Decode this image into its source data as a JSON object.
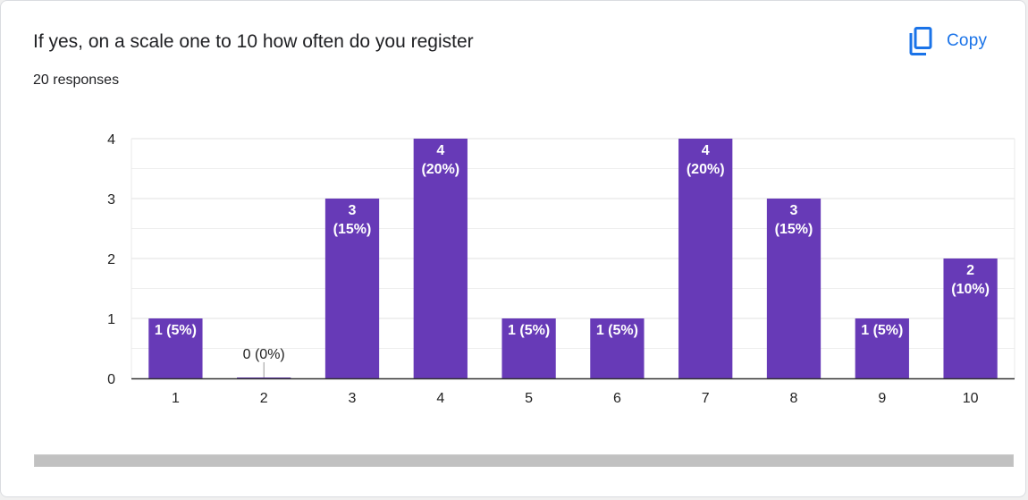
{
  "header": {
    "title": "If yes, on a scale one to 10 how often do you register",
    "responses": "20 responses",
    "copy_label": "Copy"
  },
  "colors": {
    "bar": "#673ab7",
    "accent": "#1a73e8",
    "grid": "#e8e8e8",
    "axis": "#333333"
  },
  "icons": {
    "copy": "copy-icon"
  },
  "chart_data": {
    "type": "bar",
    "categories": [
      "1",
      "2",
      "3",
      "4",
      "5",
      "6",
      "7",
      "8",
      "9",
      "10"
    ],
    "values": [
      1,
      0,
      3,
      4,
      1,
      1,
      4,
      3,
      1,
      2
    ],
    "data_labels": [
      [
        "1 (5%)"
      ],
      [
        "0 (0%)"
      ],
      [
        "3",
        "(15%)"
      ],
      [
        "4",
        "(20%)"
      ],
      [
        "1 (5%)"
      ],
      [
        "1 (5%)"
      ],
      [
        "4",
        "(20%)"
      ],
      [
        "3",
        "(15%)"
      ],
      [
        "1 (5%)"
      ],
      [
        "2",
        "(10%)"
      ]
    ],
    "y_ticks": [
      "0",
      "1",
      "2",
      "3",
      "4"
    ],
    "ylim": [
      0,
      4
    ],
    "grid": true
  }
}
